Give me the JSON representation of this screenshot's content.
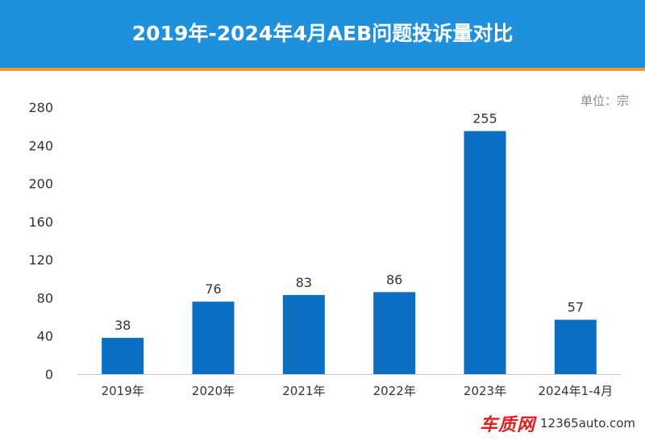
{
  "header": {
    "title": "2019年-2024年4月AEB问题投诉量对比"
  },
  "unit_label": "单位：宗",
  "watermark": {
    "logo": "车质网",
    "site": "12365auto.com"
  },
  "colors": {
    "header_bg": "#1e90dc",
    "header_rule": "#ef9b2c",
    "bar": "#0a6fc2",
    "axis_text": "#333333"
  },
  "chart_data": {
    "type": "bar",
    "title": "2019年-2024年4月AEB问题投诉量对比",
    "ylabel": "",
    "xlabel": "",
    "unit": "单位：宗",
    "categories": [
      "2019年",
      "2020年",
      "2021年",
      "2022年",
      "2023年",
      "2024年1-4月"
    ],
    "values": [
      38,
      76,
      83,
      86,
      255,
      57
    ],
    "ylim": [
      0,
      280
    ],
    "yticks": [
      0,
      40,
      80,
      120,
      160,
      200,
      240,
      280
    ],
    "grid": false,
    "data_labels": true
  }
}
